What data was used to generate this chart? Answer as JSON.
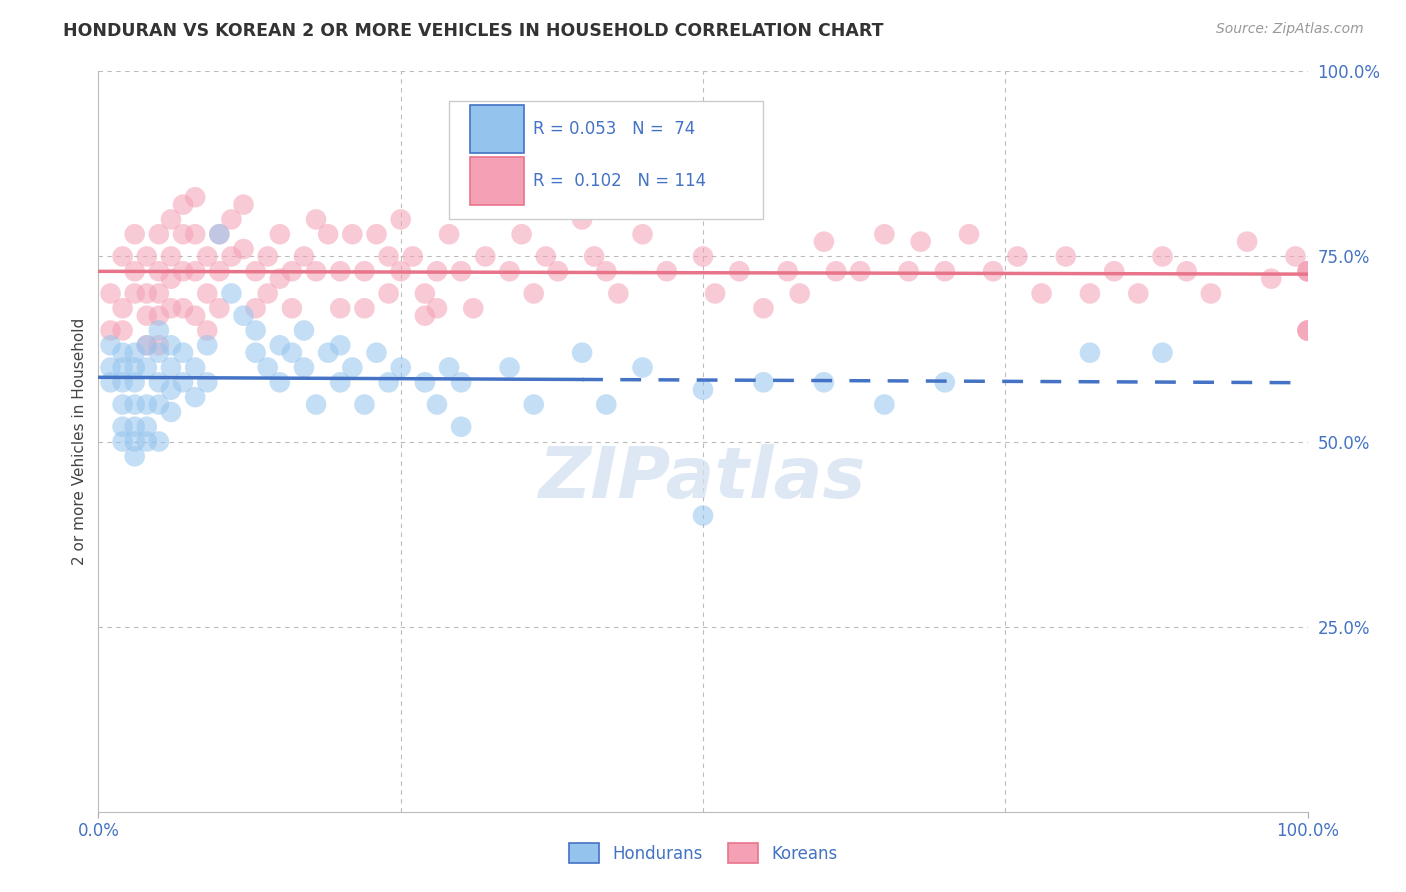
{
  "title": "HONDURAN VS KOREAN 2 OR MORE VEHICLES IN HOUSEHOLD CORRELATION CHART",
  "source": "Source: ZipAtlas.com",
  "ylabel": "2 or more Vehicles in Household",
  "xlim": [
    0,
    100
  ],
  "ylim": [
    0,
    100
  ],
  "ytick_values_right": [
    100,
    75,
    50,
    25
  ],
  "legend_label1": "Hondurans",
  "legend_label2": "Koreans",
  "r1": "0.053",
  "n1": "74",
  "r2": "0.102",
  "n2": "114",
  "color_honduran": "#94C4EE",
  "color_korean": "#F4A0B5",
  "color_honduran_line": "#4472C4",
  "color_korean_line": "#E8748A",
  "color_title": "#333333",
  "color_axis_labels": "#4472C4",
  "color_source": "#999999",
  "color_grid": "#BBBBBB",
  "color_legend_text": "#4472C4",
  "background_color": "#FFFFFF",
  "honduran_x": [
    1,
    1,
    1,
    2,
    2,
    2,
    2,
    2,
    2,
    3,
    3,
    3,
    3,
    3,
    3,
    3,
    4,
    4,
    4,
    4,
    4,
    5,
    5,
    5,
    5,
    5,
    6,
    6,
    6,
    6,
    7,
    7,
    8,
    8,
    9,
    9,
    10,
    11,
    12,
    13,
    13,
    14,
    15,
    15,
    16,
    17,
    17,
    18,
    19,
    20,
    20,
    21,
    22,
    23,
    24,
    25,
    27,
    28,
    29,
    30,
    30,
    34,
    36,
    40,
    42,
    45,
    50,
    50,
    55,
    60,
    65,
    70,
    82,
    88
  ],
  "honduran_y": [
    60,
    63,
    58,
    62,
    60,
    58,
    55,
    52,
    50,
    62,
    60,
    58,
    55,
    52,
    50,
    48,
    63,
    60,
    55,
    52,
    50,
    65,
    62,
    58,
    55,
    50,
    63,
    60,
    57,
    54,
    62,
    58,
    60,
    56,
    63,
    58,
    78,
    70,
    67,
    65,
    62,
    60,
    63,
    58,
    62,
    65,
    60,
    55,
    62,
    63,
    58,
    60,
    55,
    62,
    58,
    60,
    58,
    55,
    60,
    58,
    52,
    60,
    55,
    62,
    55,
    60,
    57,
    40,
    58,
    58,
    55,
    58,
    62,
    62
  ],
  "korean_x": [
    1,
    1,
    2,
    2,
    2,
    3,
    3,
    3,
    4,
    4,
    4,
    4,
    5,
    5,
    5,
    5,
    5,
    6,
    6,
    6,
    6,
    7,
    7,
    7,
    7,
    8,
    8,
    8,
    8,
    9,
    9,
    9,
    10,
    10,
    10,
    11,
    11,
    12,
    12,
    13,
    13,
    14,
    14,
    15,
    15,
    16,
    16,
    17,
    18,
    18,
    19,
    20,
    20,
    21,
    22,
    22,
    23,
    24,
    24,
    25,
    25,
    26,
    27,
    27,
    28,
    28,
    29,
    30,
    31,
    32,
    34,
    35,
    36,
    37,
    38,
    40,
    41,
    42,
    43,
    45,
    47,
    50,
    51,
    53,
    55,
    57,
    58,
    60,
    61,
    63,
    65,
    67,
    68,
    70,
    72,
    74,
    76,
    78,
    80,
    82,
    84,
    86,
    88,
    90,
    92,
    95,
    97,
    99,
    100,
    100,
    100,
    100,
    100,
    100
  ],
  "korean_y": [
    70,
    65,
    75,
    68,
    65,
    78,
    73,
    70,
    75,
    70,
    67,
    63,
    78,
    73,
    70,
    67,
    63,
    80,
    75,
    72,
    68,
    82,
    78,
    73,
    68,
    83,
    78,
    73,
    67,
    75,
    70,
    65,
    78,
    73,
    68,
    80,
    75,
    82,
    76,
    73,
    68,
    75,
    70,
    78,
    72,
    73,
    68,
    75,
    80,
    73,
    78,
    73,
    68,
    78,
    73,
    68,
    78,
    75,
    70,
    80,
    73,
    75,
    70,
    67,
    73,
    68,
    78,
    73,
    68,
    75,
    73,
    78,
    70,
    75,
    73,
    80,
    75,
    73,
    70,
    78,
    73,
    75,
    70,
    73,
    68,
    73,
    70,
    77,
    73,
    73,
    78,
    73,
    77,
    73,
    78,
    73,
    75,
    70,
    75,
    70,
    73,
    70,
    75,
    73,
    70,
    77,
    72,
    75,
    73,
    73,
    65,
    73,
    65,
    65
  ]
}
